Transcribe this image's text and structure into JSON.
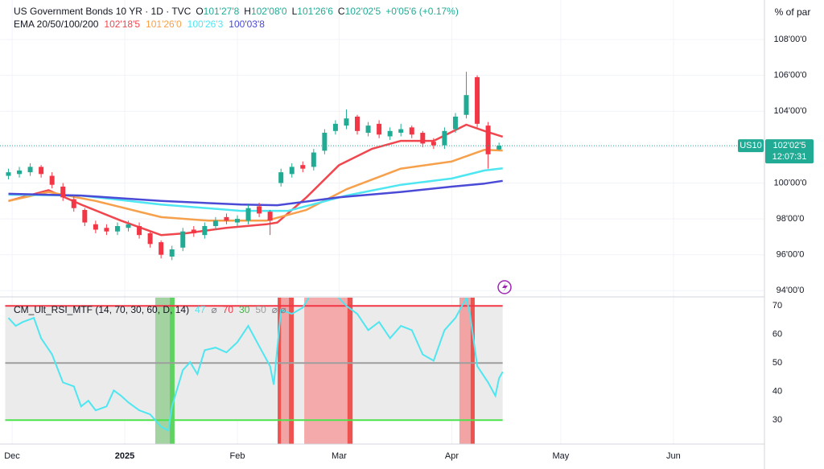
{
  "chart_data": [
    {
      "type": "candlestick",
      "title": "US Government Bonds 10 YR · 1D · TVC",
      "ohlc": [
        {
          "label": "O",
          "value_label": "101'27'8"
        },
        {
          "label": "H",
          "value_label": "102'08'0"
        },
        {
          "label": "L",
          "value_label": "101'26'6"
        },
        {
          "label": "C",
          "value_label": "102'02'5"
        }
      ],
      "change": "+0'05'6 (+0.17%)",
      "y_unit": "% of par",
      "ema_title": "EMA 20/50/100/200",
      "xlim": [
        -3.32,
        207.04
      ],
      "ylim": [
        93.7,
        110.2
      ],
      "xticks": [
        {
          "value": 0,
          "label": "Dec"
        },
        {
          "value": 31,
          "label": "2025"
        },
        {
          "value": 62,
          "label": "Feb"
        },
        {
          "value": 90,
          "label": "Mar"
        },
        {
          "value": 121,
          "label": "Apr"
        },
        {
          "value": 151,
          "label": "May"
        },
        {
          "value": 182,
          "label": "Jun"
        }
      ],
      "yticks": [
        {
          "value": 94,
          "label": "94'00'0"
        },
        {
          "value": 96,
          "label": "96'00'0"
        },
        {
          "value": 98,
          "label": "98'00'0"
        },
        {
          "value": 100,
          "label": "100'00'0"
        },
        {
          "value": 102,
          "label": "102'00'0"
        },
        {
          "value": 104,
          "label": "104'00'0"
        },
        {
          "value": 106,
          "label": "106'00'0"
        },
        {
          "value": 108,
          "label": "108'00'0"
        }
      ],
      "grid": true,
      "up_color": "#22ab94",
      "down_color": "#f23645",
      "candles": {
        "x": [
          -1,
          2,
          5,
          8,
          11,
          14,
          17,
          20,
          23,
          26,
          29,
          32,
          35,
          38,
          41,
          44,
          47,
          50,
          53,
          56,
          59,
          62,
          65,
          68,
          71,
          74,
          77,
          80,
          83,
          86,
          89,
          92,
          95,
          98,
          101,
          104,
          107,
          110,
          113,
          116,
          119,
          122,
          125,
          128,
          131,
          134
        ],
        "open": [
          100.4,
          100.5,
          100.6,
          100.9,
          100.4,
          99.8,
          99.1,
          98.5,
          97.7,
          97.5,
          97.3,
          97.5,
          97.6,
          97.2,
          96.7,
          95.9,
          96.4,
          97.4,
          97.1,
          97.6,
          98.1,
          97.8,
          97.9,
          98.7,
          98.4,
          100.0,
          100.5,
          101.0,
          100.9,
          101.8,
          102.9,
          103.2,
          103.7,
          102.8,
          103.3,
          102.6,
          102.8,
          103.1,
          102.8,
          102.3,
          102.1,
          103.0,
          103.8,
          105.9,
          103.2,
          101.87
        ],
        "high": [
          100.8,
          100.9,
          101.1,
          101.0,
          100.6,
          100.0,
          99.3,
          98.6,
          97.9,
          97.7,
          97.8,
          97.9,
          97.8,
          97.3,
          96.8,
          96.5,
          97.5,
          97.6,
          97.8,
          98.1,
          98.3,
          98.2,
          98.8,
          98.9,
          98.5,
          100.8,
          101.1,
          101.2,
          101.9,
          103.0,
          103.5,
          104.1,
          103.8,
          103.4,
          103.5,
          103.1,
          103.3,
          103.2,
          102.9,
          102.5,
          103.1,
          103.9,
          106.2,
          106.0,
          103.4,
          102.25
        ],
        "low": [
          100.2,
          100.3,
          100.4,
          100.3,
          99.7,
          99.0,
          98.4,
          97.6,
          97.2,
          97.1,
          97.1,
          97.3,
          96.9,
          96.4,
          95.8,
          95.7,
          96.2,
          97.0,
          96.9,
          97.4,
          97.7,
          97.6,
          97.7,
          98.1,
          97.1,
          99.8,
          100.3,
          100.6,
          100.7,
          101.6,
          102.7,
          103.0,
          102.7,
          102.6,
          102.5,
          102.4,
          102.6,
          102.5,
          102.0,
          101.9,
          101.9,
          102.8,
          103.6,
          103.1,
          100.8,
          101.83
        ],
        "close": [
          100.6,
          100.7,
          100.9,
          100.5,
          99.9,
          99.2,
          98.6,
          97.8,
          97.4,
          97.3,
          97.6,
          97.7,
          97.1,
          96.6,
          96.0,
          96.3,
          97.3,
          97.2,
          97.6,
          97.9,
          97.9,
          98.0,
          98.6,
          98.3,
          97.9,
          100.6,
          100.9,
          100.8,
          101.7,
          102.8,
          103.3,
          103.6,
          102.9,
          103.2,
          102.7,
          102.9,
          103.0,
          102.7,
          102.2,
          102.1,
          102.9,
          103.7,
          104.9,
          103.3,
          101.6,
          102.08
        ]
      },
      "last_price": {
        "value": 102.08,
        "label": "102'02'5",
        "symbol": "US10",
        "countdown": "12:07:31",
        "color": "#22ab94"
      },
      "series": [
        {
          "color": "#f0474f",
          "last_label": "102'18'5",
          "x": [
            -1,
            10,
            19,
            30,
            41,
            48,
            59,
            70,
            73,
            81,
            90,
            99,
            107,
            116,
            125,
            130,
            135
          ],
          "values": [
            99.0,
            99.6,
            98.8,
            97.9,
            97.1,
            97.2,
            97.5,
            97.7,
            97.8,
            99.2,
            101.0,
            101.9,
            102.35,
            102.35,
            103.25,
            102.9,
            102.58
          ]
        },
        {
          "color": "#f7a04b",
          "last_label": "101'26'0",
          "x": [
            -1,
            10,
            23,
            41,
            54,
            70,
            81,
            92,
            107,
            121,
            130,
            135
          ],
          "values": [
            99.0,
            99.5,
            99.0,
            98.1,
            97.9,
            97.9,
            98.5,
            99.65,
            100.8,
            101.2,
            101.85,
            101.81
          ]
        },
        {
          "color": "#4ee6f0",
          "last_label": "100'26'3",
          "x": [
            -1,
            19,
            41,
            63,
            76,
            92,
            107,
            121,
            130,
            135
          ],
          "values": [
            99.35,
            99.3,
            98.8,
            98.45,
            98.45,
            99.3,
            99.9,
            100.25,
            100.7,
            100.82
          ]
        },
        {
          "color": "#4a4ad6",
          "last_label": "100'03'8",
          "x": [
            -1,
            19,
            41,
            63,
            73,
            90,
            107,
            121,
            130,
            135
          ],
          "values": [
            99.4,
            99.3,
            99.0,
            98.8,
            98.76,
            99.2,
            99.5,
            99.8,
            99.97,
            100.12
          ]
        }
      ]
    },
    {
      "type": "line",
      "title": "CM_Ult_RSI_MTF (14, 70, 30, 60, D, 14)",
      "legend_marks": [
        "⌀",
        "⌀ ⌀"
      ],
      "ylim": [
        21.6,
        72.9
      ],
      "yticks": [
        30,
        40,
        50,
        60,
        70
      ],
      "band_color": "#ebebeb",
      "band_end": 135,
      "levels": [
        {
          "value": 70,
          "color": "#f23645"
        },
        {
          "value": 50,
          "color": "#9e9e9e"
        },
        {
          "value": 30,
          "color": "#4ce34c"
        }
      ],
      "zones": [
        {
          "start": 39.4,
          "end": 44.7,
          "color": "#a3d3a0"
        },
        {
          "start": 43.4,
          "end": 44.7,
          "color": "#5fd35f"
        },
        {
          "start": 73.1,
          "end": 77.5,
          "color": "#f2a3a3"
        },
        {
          "start": 73.1,
          "end": 74,
          "color": "#ef5350"
        },
        {
          "start": 76.2,
          "end": 77.5,
          "color": "#ef5350"
        },
        {
          "start": 80.4,
          "end": 93.7,
          "color": "#f4aaaa"
        },
        {
          "start": 92.3,
          "end": 93.7,
          "color": "#ef5350"
        },
        {
          "start": 123.1,
          "end": 127.3,
          "color": "#f2a3a3"
        },
        {
          "start": 126.2,
          "end": 127.3,
          "color": "#ef5350"
        }
      ],
      "series": [
        {
          "color": "#4ee6f0",
          "last_label": "47",
          "x": [
            -1,
            1,
            3,
            6,
            8,
            11,
            14,
            17,
            19,
            21,
            23,
            26,
            28,
            30,
            32,
            35,
            38,
            41,
            43,
            44,
            47,
            49,
            51,
            53,
            56,
            59,
            62,
            65,
            68,
            71,
            72,
            74,
            77,
            80,
            83,
            86,
            89,
            92,
            95,
            98,
            101,
            104,
            107,
            110,
            113,
            116,
            119,
            122,
            125,
            126,
            128,
            131,
            133,
            134,
            135
          ],
          "values": [
            65.8,
            63,
            64.4,
            65.8,
            58.7,
            53,
            43.2,
            41.8,
            34.8,
            36.8,
            33.4,
            34.8,
            40.4,
            38.5,
            36.2,
            33.4,
            32,
            27.7,
            26.3,
            34.8,
            47.5,
            50.3,
            46.1,
            54.5,
            55.4,
            53.7,
            57.3,
            63,
            55.9,
            48.9,
            42.4,
            68.6,
            67.2,
            69.4,
            76,
            75,
            74,
            70,
            67.2,
            61.5,
            64.4,
            58.7,
            63,
            61.5,
            53,
            50.8,
            61.5,
            65.8,
            72.8,
            67.2,
            48.9,
            43.2,
            38.5,
            44.6,
            46.9
          ]
        }
      ]
    }
  ]
}
